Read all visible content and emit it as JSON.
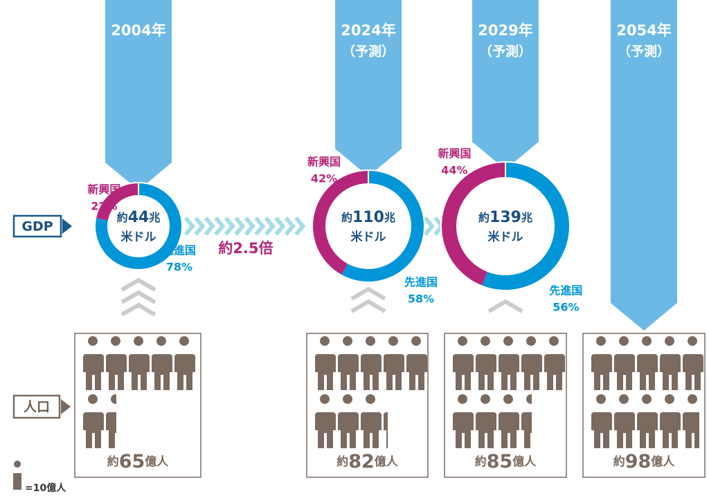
{
  "labels": {
    "gdp": "GDP",
    "population": "人口",
    "multiplier": "約2.5倍",
    "approx": "約",
    "trillion": "兆",
    "usd": "米ドル",
    "billion_people": "億人",
    "emerging": "新興国",
    "advanced": "先進国",
    "forecast": "（予測）"
  },
  "legend": {
    "prefix": "=",
    "value": 10,
    "unit": "億人"
  },
  "columns": [
    {
      "year": "2004年",
      "gdp": {
        "value": 44,
        "shares": [
          22,
          78
        ],
        "share_labels": [
          "22%",
          "78%"
        ]
      },
      "population": 65
    },
    {
      "year": "2024年",
      "forecast": true,
      "gdp": {
        "value": 110,
        "shares": [
          42,
          58
        ],
        "share_labels": [
          "42%",
          "58%"
        ]
      },
      "population": 82
    },
    {
      "year": "2029年",
      "forecast": true,
      "gdp": {
        "value": 139,
        "shares": [
          44,
          56
        ],
        "share_labels": [
          "44%",
          "56%"
        ]
      },
      "population": 85
    },
    {
      "year": "2054年",
      "forecast": true,
      "population": 98
    }
  ]
}
